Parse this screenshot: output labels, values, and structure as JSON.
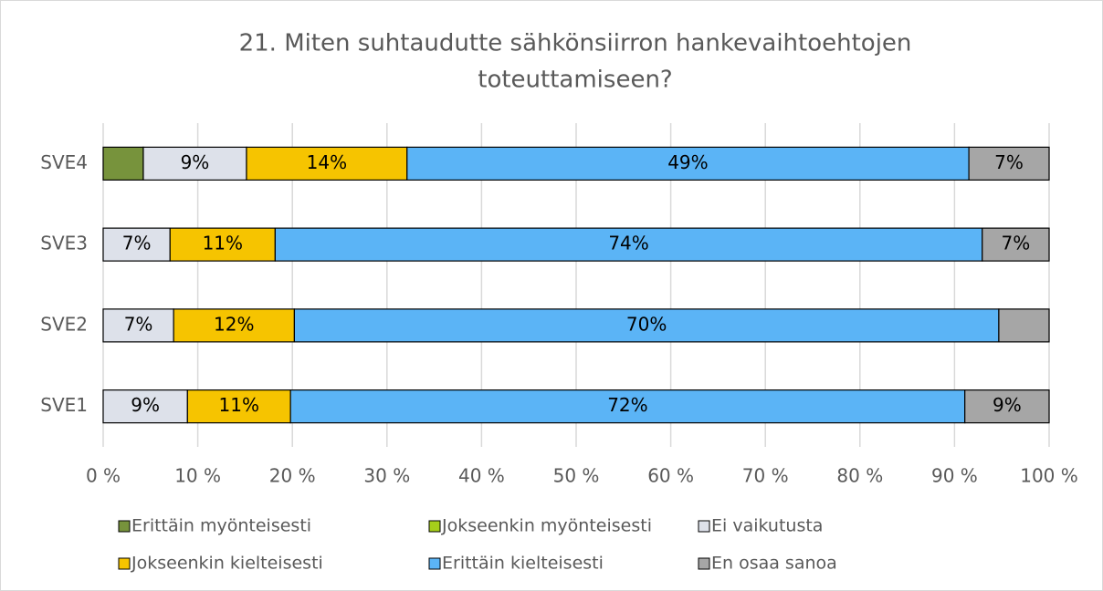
{
  "chart_data": {
    "type": "bar",
    "orientation": "horizontal",
    "stacking": "percent",
    "title_lines": [
      "21. Miten suhtaudutte sähkönsiirron hankevaihtoehtojen",
      "toteuttamiseen?"
    ],
    "categories": [
      "SVE1",
      "SVE2",
      "SVE3",
      "SVE4"
    ],
    "series": [
      {
        "name": "Erittäin myönteisesti",
        "color": "#77933c",
        "values": [
          null,
          null,
          null,
          3.5
        ],
        "value_labels": [
          null,
          null,
          null,
          null
        ]
      },
      {
        "name": "Jokseenkin myönteisesti",
        "color": "#a6cf1a",
        "values": [
          null,
          null,
          null,
          null
        ],
        "value_labels": [
          null,
          null,
          null,
          null
        ]
      },
      {
        "name": "Ei vaikutusta",
        "color": "#dde1ea",
        "values": [
          9,
          7,
          7,
          9
        ],
        "value_labels": [
          "9%",
          "7%",
          "7%",
          "9%"
        ]
      },
      {
        "name": "Jokseenkin kielteisesti",
        "color": "#f6c400",
        "values": [
          11,
          12,
          11,
          14
        ],
        "value_labels": [
          "11%",
          "12%",
          "11%",
          "14%"
        ]
      },
      {
        "name": "Erittäin kielteisesti",
        "color": "#5bb4f6",
        "values": [
          72,
          70,
          74,
          49
        ],
        "value_labels": [
          "72%",
          "70%",
          "74%",
          "49%"
        ]
      },
      {
        "name": "En osaa sanoa",
        "color": "#a6a6a6",
        "values": [
          9,
          5,
          7,
          7
        ],
        "value_labels": [
          "9%",
          null,
          "7%",
          "7%"
        ]
      }
    ],
    "xlim": [
      0,
      100
    ],
    "xticks": [
      {
        "value": 0,
        "label": "0 %"
      },
      {
        "value": 10,
        "label": "10 %"
      },
      {
        "value": 20,
        "label": "20 %"
      },
      {
        "value": 30,
        "label": "30 %"
      },
      {
        "value": 40,
        "label": "40 %"
      },
      {
        "value": 50,
        "label": "50 %"
      },
      {
        "value": 60,
        "label": "60 %"
      },
      {
        "value": 70,
        "label": "70 %"
      },
      {
        "value": 80,
        "label": "80 %"
      },
      {
        "value": 90,
        "label": "90 %"
      },
      {
        "value": 100,
        "label": "100 %"
      }
    ],
    "grid": true,
    "legend": "bottom"
  }
}
